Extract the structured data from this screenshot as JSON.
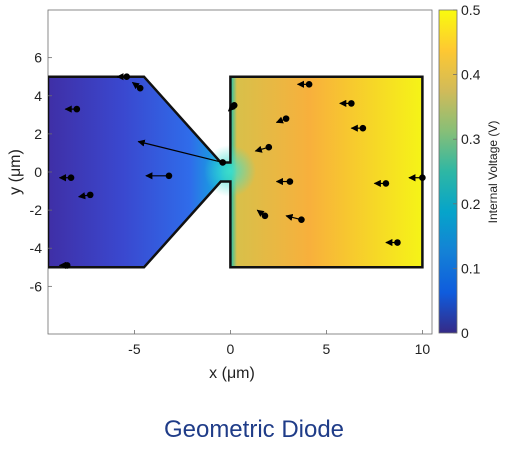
{
  "caption": "Geometric Diode",
  "chart_data": {
    "type": "scatter",
    "description_type": "field simulation",
    "xlabel": "x (μm)",
    "ylabel": "y (μm)",
    "xlim": [
      -9.5,
      10.5
    ],
    "ylim": [
      -8.5,
      8.5
    ],
    "xticks": [
      -5,
      0,
      5,
      10
    ],
    "yticks": [
      6,
      4,
      2,
      0,
      -2,
      -4,
      -6
    ],
    "grid": false,
    "colorbar": {
      "label": "Internal Voltage (V)",
      "min": 0,
      "max": 0.5,
      "ticks": [
        0,
        0.1,
        0.2,
        0.3,
        0.4,
        0.5
      ],
      "colormap": "parula",
      "colors": [
        "#352a87",
        "#0f5cdd",
        "#1481d6",
        "#06a4ca",
        "#2eb7a4",
        "#87bf77",
        "#d1bb59",
        "#fec832",
        "#f9fb0e"
      ]
    },
    "device_outline": [
      [
        -9.5,
        5
      ],
      [
        -4.5,
        5
      ],
      [
        -0.5,
        0.5
      ],
      [
        0,
        0.5
      ],
      [
        0,
        5
      ],
      [
        10,
        5
      ],
      [
        10,
        -5
      ],
      [
        0,
        -5
      ],
      [
        0,
        -0.5
      ],
      [
        -0.5,
        -0.5
      ],
      [
        -4.5,
        -5
      ],
      [
        -9.5,
        -5
      ]
    ],
    "carriers": [
      {
        "x": -5.4,
        "y": 5.0,
        "dx": -0.5,
        "dy": 0.0
      },
      {
        "x": -4.7,
        "y": 4.4,
        "dx": -0.4,
        "dy": 0.3
      },
      {
        "x": -8.0,
        "y": 3.3,
        "dx": -0.6,
        "dy": 0.0
      },
      {
        "x": -0.4,
        "y": 0.5,
        "dx": -4.4,
        "dy": 1.1
      },
      {
        "x": -8.3,
        "y": -0.3,
        "dx": -0.6,
        "dy": 0.0
      },
      {
        "x": -7.3,
        "y": -1.2,
        "dx": -0.6,
        "dy": -0.1
      },
      {
        "x": -3.2,
        "y": -0.2,
        "dx": -1.2,
        "dy": 0.0
      },
      {
        "x": -8.5,
        "y": -4.9,
        "dx": -0.4,
        "dy": 0.0
      },
      {
        "x": 0.2,
        "y": 3.5,
        "dx": -0.3,
        "dy": -0.3
      },
      {
        "x": 4.1,
        "y": 4.6,
        "dx": -0.6,
        "dy": 0.0
      },
      {
        "x": 6.3,
        "y": 3.6,
        "dx": -0.6,
        "dy": 0.0
      },
      {
        "x": 2.9,
        "y": 2.8,
        "dx": -0.5,
        "dy": -0.2
      },
      {
        "x": 6.9,
        "y": 2.3,
        "dx": -0.6,
        "dy": 0.0
      },
      {
        "x": 2.0,
        "y": 1.3,
        "dx": -0.7,
        "dy": -0.2
      },
      {
        "x": 3.1,
        "y": -0.5,
        "dx": -0.7,
        "dy": 0.0
      },
      {
        "x": 8.1,
        "y": -0.6,
        "dx": -0.6,
        "dy": 0.0
      },
      {
        "x": 10.0,
        "y": -0.3,
        "dx": -0.7,
        "dy": 0.0
      },
      {
        "x": 1.8,
        "y": -2.3,
        "dx": -0.4,
        "dy": 0.3
      },
      {
        "x": 3.7,
        "y": -2.5,
        "dx": -0.8,
        "dy": 0.2
      },
      {
        "x": 8.7,
        "y": -3.7,
        "dx": -0.6,
        "dy": 0.0
      }
    ]
  }
}
